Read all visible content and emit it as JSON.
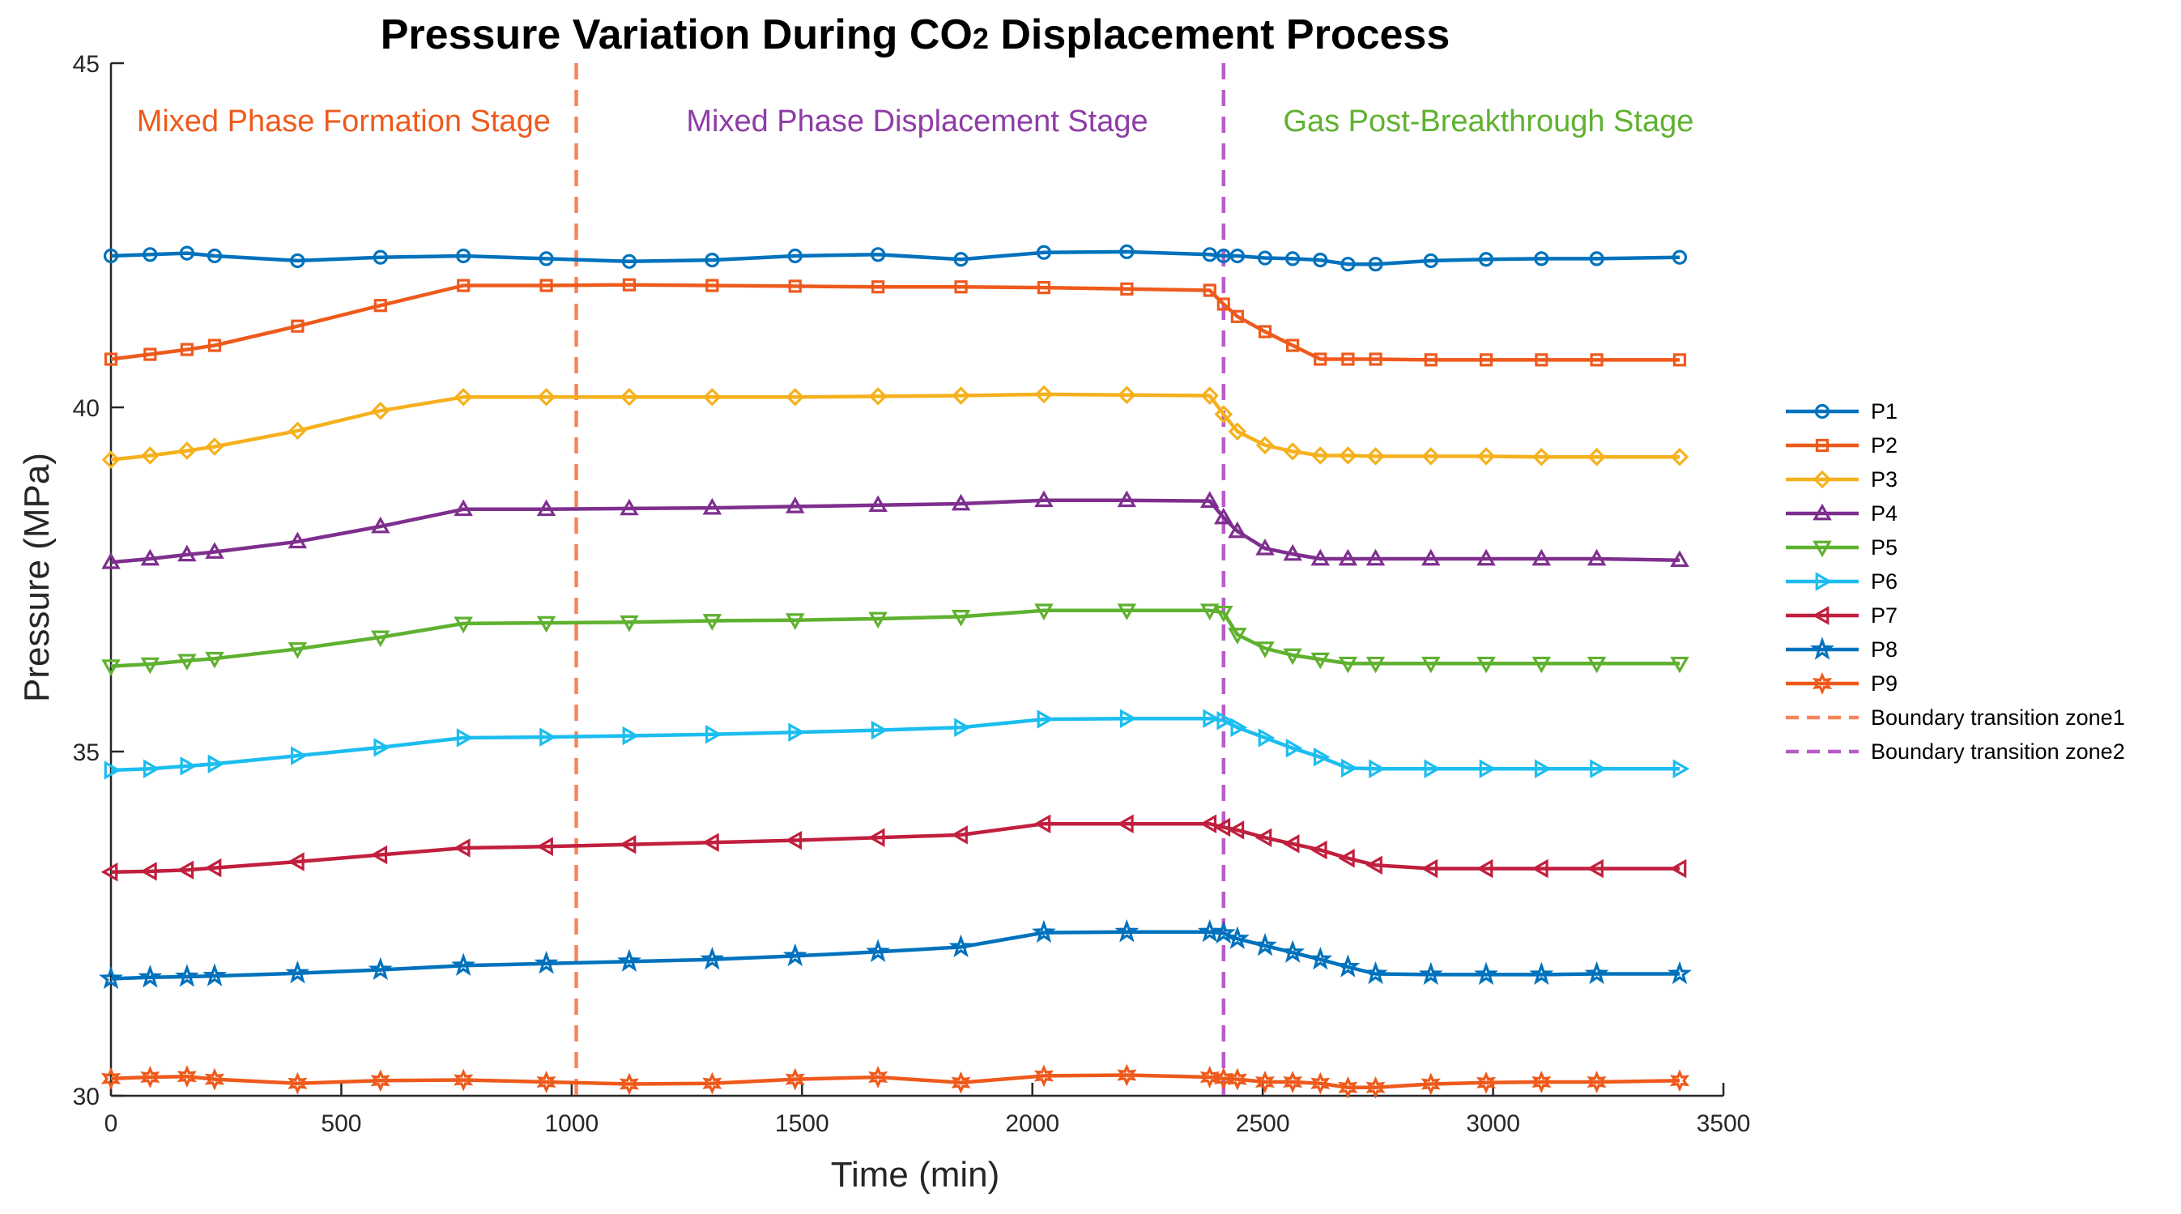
{
  "chart_data": {
    "type": "line",
    "title_main": "Pressure Variation During CO",
    "title_sub": "2",
    "title_tail": " Displacement Process",
    "xlabel": "Time (min)",
    "ylabel": "Pressure (MPa)",
    "xlim": [
      0,
      3500
    ],
    "ylim": [
      30,
      45
    ],
    "xticks": [
      0,
      500,
      1000,
      1500,
      2000,
      2500,
      3000,
      3500
    ],
    "yticks": [
      30,
      35,
      40,
      45
    ],
    "x": [
      0,
      85,
      165,
      225,
      405,
      585,
      765,
      945,
      1125,
      1305,
      1485,
      1665,
      1845,
      2025,
      2205,
      2385,
      2415,
      2445,
      2505,
      2565,
      2625,
      2685,
      2745,
      2865,
      2985,
      3105,
      3225,
      3405
    ],
    "series": [
      {
        "name": "P1",
        "color": "#0072BD",
        "marker": "circle",
        "values": [
          42.2,
          42.22,
          42.24,
          42.2,
          42.13,
          42.18,
          42.2,
          42.16,
          42.12,
          42.14,
          42.2,
          42.22,
          42.15,
          42.25,
          42.26,
          42.22,
          42.2,
          42.2,
          42.17,
          42.16,
          42.14,
          42.08,
          42.08,
          42.13,
          42.15,
          42.16,
          42.16,
          42.18
        ]
      },
      {
        "name": "P2",
        "color": "#EE5A1C",
        "marker": "square",
        "values": [
          40.7,
          40.77,
          40.84,
          40.9,
          41.18,
          41.48,
          41.77,
          41.77,
          41.78,
          41.77,
          41.76,
          41.75,
          41.75,
          41.74,
          41.72,
          41.7,
          41.5,
          41.32,
          41.1,
          40.9,
          40.7,
          40.7,
          40.7,
          40.69,
          40.69,
          40.69,
          40.69,
          40.69
        ]
      },
      {
        "name": "P3",
        "color": "#F5B11D",
        "marker": "diamond",
        "values": [
          39.24,
          39.3,
          39.37,
          39.43,
          39.66,
          39.95,
          40.15,
          40.15,
          40.15,
          40.15,
          40.15,
          40.16,
          40.17,
          40.19,
          40.18,
          40.17,
          39.9,
          39.65,
          39.45,
          39.36,
          39.3,
          39.3,
          39.29,
          39.29,
          39.29,
          39.28,
          39.28,
          39.28
        ]
      },
      {
        "name": "P4",
        "color": "#7E2F8E",
        "marker": "triangle-up",
        "values": [
          37.75,
          37.8,
          37.86,
          37.9,
          38.05,
          38.27,
          38.52,
          38.52,
          38.53,
          38.54,
          38.56,
          38.58,
          38.6,
          38.65,
          38.65,
          38.64,
          38.4,
          38.2,
          37.95,
          37.87,
          37.8,
          37.8,
          37.8,
          37.8,
          37.8,
          37.8,
          37.8,
          37.78
        ]
      },
      {
        "name": "P5",
        "color": "#5FB130",
        "marker": "triangle-down",
        "values": [
          36.24,
          36.27,
          36.32,
          36.35,
          36.49,
          36.66,
          36.86,
          36.87,
          36.88,
          36.9,
          36.91,
          36.93,
          36.96,
          37.05,
          37.05,
          37.05,
          37.02,
          36.7,
          36.5,
          36.4,
          36.34,
          36.28,
          36.28,
          36.28,
          36.28,
          36.28,
          36.28,
          36.28
        ]
      },
      {
        "name": "P6",
        "color": "#1CBDEF",
        "marker": "triangle-right",
        "values": [
          34.73,
          34.75,
          34.79,
          34.82,
          34.94,
          35.06,
          35.2,
          35.21,
          35.23,
          35.25,
          35.28,
          35.31,
          35.35,
          35.47,
          35.48,
          35.48,
          35.45,
          35.35,
          35.2,
          35.05,
          34.92,
          34.76,
          34.75,
          34.75,
          34.75,
          34.75,
          34.75,
          34.75
        ]
      },
      {
        "name": "P7",
        "color": "#C11F3E",
        "marker": "triangle-left",
        "values": [
          33.25,
          33.26,
          33.28,
          33.31,
          33.4,
          33.5,
          33.6,
          33.62,
          33.65,
          33.68,
          33.71,
          33.75,
          33.79,
          33.95,
          33.95,
          33.95,
          33.9,
          33.86,
          33.75,
          33.66,
          33.57,
          33.45,
          33.35,
          33.3,
          33.3,
          33.3,
          33.3,
          33.3
        ]
      },
      {
        "name": "P8",
        "color": "#0072BD",
        "marker": "star",
        "values": [
          31.7,
          31.72,
          31.73,
          31.74,
          31.78,
          31.83,
          31.89,
          31.92,
          31.95,
          31.98,
          32.03,
          32.09,
          32.16,
          32.37,
          32.38,
          32.38,
          32.36,
          32.28,
          32.18,
          32.08,
          31.98,
          31.87,
          31.77,
          31.76,
          31.76,
          31.76,
          31.77,
          31.77
        ]
      },
      {
        "name": "P9",
        "color": "#EE5A1C",
        "marker": "hexstar",
        "values": [
          30.25,
          30.27,
          30.28,
          30.24,
          30.18,
          30.22,
          30.23,
          30.2,
          30.17,
          30.18,
          30.24,
          30.27,
          30.19,
          30.29,
          30.3,
          30.27,
          30.25,
          30.24,
          30.2,
          30.2,
          30.18,
          30.12,
          30.12,
          30.17,
          30.19,
          30.2,
          30.2,
          30.22
        ]
      }
    ],
    "boundaries": [
      {
        "name": "Boundary transition zone1",
        "x": 1010,
        "color": "#F7845A"
      },
      {
        "name": "Boundary transition zone2",
        "x": 2415,
        "color": "#B85CC7"
      }
    ],
    "annotations": [
      {
        "text": "Mixed Phase Formation Stage",
        "x": 505,
        "color": "#EE5A1C"
      },
      {
        "text": "Mixed Phase Displacement Stage",
        "x": 1750,
        "color": "#8E3CA6"
      },
      {
        "text": "Gas Post-Breakthrough Stage",
        "x": 2990,
        "color": "#5FB130"
      }
    ],
    "legend_position": "right",
    "grid": false
  }
}
